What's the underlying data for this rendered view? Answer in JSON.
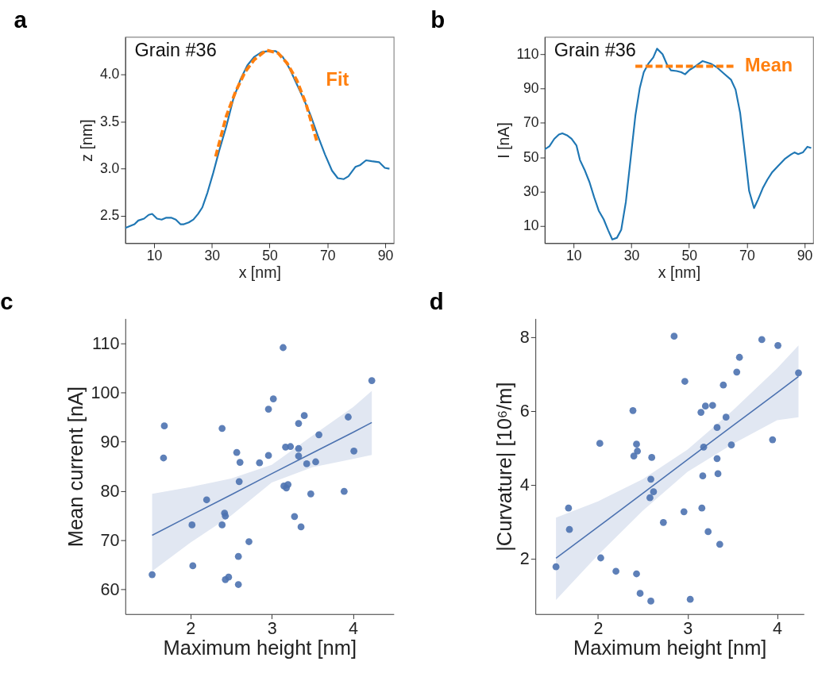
{
  "chart_data": [
    {
      "type": "line",
      "title": "a",
      "xlabel": "x  [nm]",
      "ylabel": "z  [nm]",
      "annotations": [
        "Grain #36"
      ],
      "xlim": [
        0,
        93
      ],
      "ylim": [
        2.21,
        4.4
      ],
      "xticks": [
        10,
        30,
        50,
        70,
        90
      ],
      "yticks": [
        2.5,
        {
          "value": 3,
          "label": "3.0"
        },
        3.5,
        {
          "value": 4,
          "label": "4.0"
        }
      ],
      "grid": false,
      "series": [
        {
          "color": "#1f77b4",
          "line_style": "solid",
          "x": [
            0,
            3.2,
            4.5,
            6.5,
            8.1,
            9.3,
            11,
            12.6,
            14.2,
            15.9,
            17.5,
            19.1,
            20.3,
            22,
            23.6,
            25.2,
            26.7,
            28.5,
            30.5,
            32.5,
            35,
            37.4,
            39.9,
            42.3,
            44.7,
            47.2,
            49.6,
            52.1,
            54.5,
            57,
            59.4,
            61.8,
            64.3,
            66.7,
            69.2,
            71.6,
            73.6,
            75.7,
            77.3,
            79.7,
            81.4,
            83.4,
            85.4,
            87.9,
            89.9,
            91.5
          ],
          "values": [
            2.37,
            2.41,
            2.45,
            2.47,
            2.51,
            2.52,
            2.47,
            2.46,
            2.48,
            2.48,
            2.46,
            2.41,
            2.41,
            2.43,
            2.46,
            2.52,
            2.59,
            2.75,
            2.96,
            3.19,
            3.45,
            3.74,
            3.95,
            4.1,
            4.19,
            4.24,
            4.25,
            4.25,
            4.19,
            4.06,
            3.9,
            3.74,
            3.56,
            3.35,
            3.15,
            2.98,
            2.9,
            2.89,
            2.92,
            3.02,
            3.04,
            3.09,
            3.08,
            3.07,
            3.01,
            3.0
          ]
        },
        {
          "name": "Fit",
          "color": "#ff7f0e",
          "line_style": "dashed",
          "x": [
            31.3,
            35,
            38.2,
            41.5,
            44.7,
            48.8,
            52.9,
            56.1,
            59.4,
            62.6,
            66.3
          ],
          "values": [
            3.13,
            3.56,
            3.82,
            4.03,
            4.16,
            4.26,
            4.23,
            4.12,
            3.94,
            3.69,
            3.3
          ]
        }
      ]
    },
    {
      "type": "line",
      "title": "b",
      "xlabel": "x  [nm]",
      "ylabel": "I  [nA]",
      "annotations": [
        "Grain #36"
      ],
      "xlim": [
        0,
        93
      ],
      "ylim": [
        0,
        120
      ],
      "xticks": [
        10,
        30,
        50,
        70,
        90
      ],
      "yticks": [
        10,
        30,
        50,
        70,
        90,
        110
      ],
      "grid": false,
      "series": [
        {
          "color": "#1f77b4",
          "line_style": "solid",
          "x": [
            0,
            1.6,
            3.3,
            4.9,
            6.1,
            7.7,
            9.3,
            11,
            12.2,
            13.8,
            15.5,
            17.1,
            18.7,
            20.4,
            22,
            23.4,
            25,
            26.5,
            28.1,
            29.8,
            31.4,
            32.9,
            34.3,
            35.9,
            37.6,
            38.9,
            40.8,
            42.4,
            43.7,
            45.7,
            47.3,
            48.6,
            50.2,
            52.3,
            54.7,
            57.5,
            59.6,
            62,
            64.5,
            66.1,
            67.7,
            69.4,
            70.8,
            72.5,
            73.9,
            75.5,
            77.1,
            78.8,
            80.8,
            83.3,
            85.3,
            86.5,
            87.8,
            89.4,
            91,
            92.3
          ],
          "values": [
            54.6,
            56.4,
            60.7,
            63.2,
            63.9,
            62.8,
            60.7,
            56.8,
            48.4,
            42.7,
            35.5,
            26.8,
            18.9,
            13.9,
            7.4,
            2.1,
            3.1,
            7.8,
            24,
            49.9,
            74.3,
            90.1,
            99.5,
            104.5,
            108.1,
            113.2,
            110,
            103.8,
            100.6,
            100.2,
            99.5,
            98.3,
            100.9,
            103.1,
            106,
            104.5,
            102.4,
            98.8,
            95.2,
            89.4,
            75.7,
            51.3,
            30.4,
            20.4,
            25.4,
            31.9,
            36.9,
            41.3,
            44.9,
            49.2,
            51.6,
            52.8,
            51.8,
            52.8,
            56.1,
            55.4
          ]
        },
        {
          "name": "Mean",
          "color": "#ff7f0e",
          "line_style": "dashed",
          "x": [
            31.4,
            66.1
          ],
          "values": [
            103,
            103
          ]
        }
      ]
    },
    {
      "type": "scatter",
      "title": "c",
      "xlabel": "Maximum height  [nm]",
      "ylabel": "Mean current  [nA]",
      "xlim": [
        1.2,
        4.5
      ],
      "ylim": [
        55,
        115
      ],
      "xticks": [
        2,
        3,
        4
      ],
      "yticks": [
        60,
        70,
        80,
        90,
        100,
        110
      ],
      "grid": false,
      "series": [
        {
          "type": "scatter",
          "marker": "circle",
          "color": "#4c72b0",
          "x": [
            1.53,
            1.68,
            1.67,
            2.02,
            2.03,
            2.2,
            2.39,
            2.39,
            2.42,
            2.43,
            2.43,
            2.47,
            2.57,
            2.61,
            2.6,
            2.59,
            2.59,
            2.72,
            2.85,
            2.96,
            2.96,
            3.02,
            3.14,
            3.17,
            3.23,
            3.15,
            3.18,
            3.2,
            3.28,
            3.33,
            3.33,
            3.33,
            3.36,
            3.4,
            3.43,
            3.48,
            3.54,
            3.58,
            3.89,
            3.94,
            4.01,
            4.23
          ],
          "values": [
            63.0,
            93.2,
            86.7,
            73.1,
            64.8,
            78.2,
            92.7,
            73.1,
            75.5,
            74.9,
            62.0,
            62.5,
            87.8,
            85.8,
            81.9,
            66.7,
            61.0,
            69.7,
            85.7,
            96.6,
            87.2,
            98.7,
            109.1,
            88.9,
            89.0,
            81.0,
            80.6,
            81.3,
            74.8,
            93.7,
            88.6,
            87.1,
            72.7,
            95.3,
            85.5,
            79.4,
            85.9,
            91.4,
            79.9,
            95.0,
            88.1,
            102.4
          ]
        },
        {
          "type": "line",
          "color": "#4c72b0",
          "line_style": "solid",
          "x": [
            1.53,
            2.0,
            2.5,
            3.0,
            3.5,
            4.0,
            4.23
          ],
          "values": [
            71.0,
            75.0,
            79.2,
            83.5,
            87.7,
            91.9,
            93.9
          ],
          "lower": [
            63.7,
            69.5,
            75.0,
            81.7,
            84.8,
            86.5,
            87.3
          ],
          "upper": [
            79.4,
            80.8,
            82.5,
            85.3,
            91.2,
            97.0,
            100.3
          ]
        }
      ]
    },
    {
      "type": "scatter",
      "title": "d",
      "xlabel": "Maximum height  [nm]",
      "ylabel": "|Curvature|   [10⁶/m]",
      "xlim": [
        1.3,
        4.3
      ],
      "ylim": [
        0.5,
        8.5
      ],
      "xticks": [
        2,
        3,
        4
      ],
      "yticks": [
        2,
        4,
        6,
        8
      ],
      "grid": false,
      "series": [
        {
          "type": "scatter",
          "marker": "circle",
          "color": "#4c72b0",
          "x": [
            1.53,
            1.67,
            1.68,
            2.02,
            2.03,
            2.2,
            2.39,
            2.43,
            2.44,
            2.4,
            2.43,
            2.47,
            2.6,
            2.59,
            2.62,
            2.58,
            2.59,
            2.73,
            2.85,
            2.97,
            2.96,
            3.03,
            3.15,
            3.2,
            3.28,
            3.18,
            3.17,
            3.16,
            3.23,
            3.33,
            3.33,
            3.34,
            3.36,
            3.4,
            3.43,
            3.49,
            3.55,
            3.58,
            3.83,
            3.95,
            4.01,
            4.24
          ],
          "values": [
            1.78,
            3.37,
            2.79,
            5.12,
            2.02,
            1.66,
            6.01,
            5.1,
            4.91,
            4.78,
            1.59,
            1.06,
            4.74,
            4.15,
            3.81,
            3.65,
            0.85,
            2.98,
            8.02,
            6.8,
            3.27,
            0.9,
            5.96,
            6.13,
            6.15,
            5.02,
            4.24,
            3.37,
            2.73,
            5.55,
            4.71,
            4.3,
            2.39,
            6.7,
            5.83,
            5.08,
            7.05,
            7.45,
            7.93,
            5.22,
            7.77,
            7.03
          ]
        },
        {
          "type": "line",
          "color": "#4c72b0",
          "line_style": "solid",
          "x": [
            1.53,
            2.0,
            2.5,
            3.0,
            3.5,
            4.0,
            4.24
          ],
          "values": [
            2.01,
            2.86,
            3.77,
            4.68,
            5.59,
            6.49,
            6.93
          ],
          "lower": [
            0.88,
            2.1,
            3.3,
            4.35,
            5.1,
            5.75,
            5.83
          ],
          "upper": [
            3.11,
            3.55,
            4.15,
            4.95,
            6.0,
            7.15,
            7.77
          ]
        }
      ]
    }
  ]
}
